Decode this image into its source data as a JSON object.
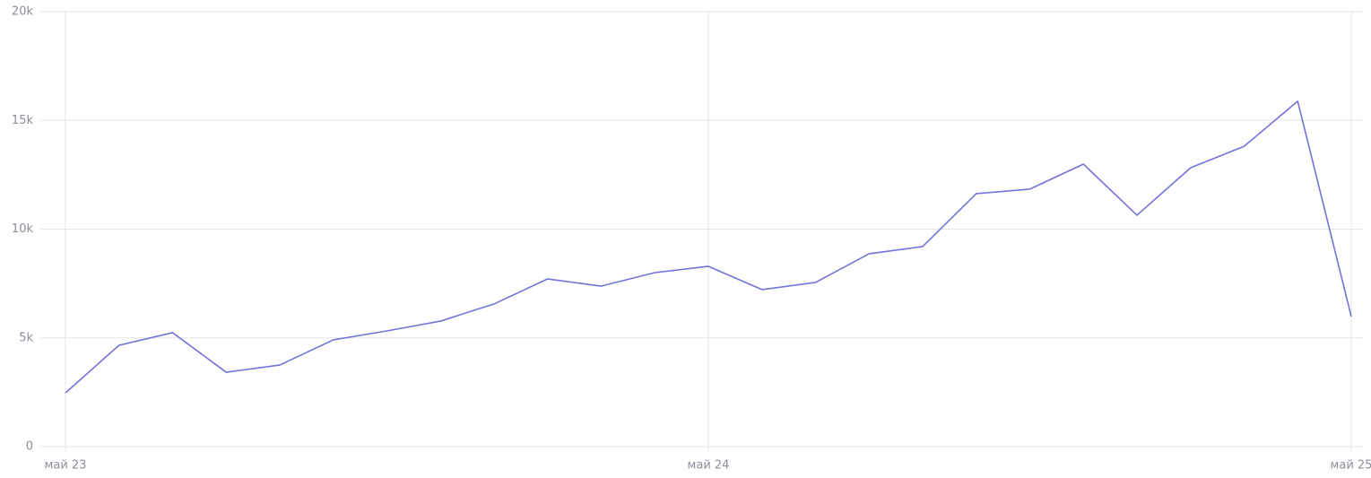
{
  "chart_data": {
    "type": "line",
    "categories": [
      "май 23",
      null,
      null,
      null,
      null,
      null,
      null,
      null,
      null,
      null,
      null,
      null,
      "май 24",
      null,
      null,
      null,
      null,
      null,
      null,
      null,
      null,
      null,
      null,
      null,
      "май 25"
    ],
    "series": [
      {
        "color": "#7373d9",
        "values": [
          2470,
          4660,
          5240,
          3420,
          3750,
          4910,
          5320,
          5770,
          6560,
          7710,
          7380,
          8000,
          8290,
          7220,
          7550,
          8870,
          9200,
          11630,
          11840,
          12990,
          10640,
          12820,
          13810,
          15880,
          5980
        ]
      }
    ],
    "ylim": [
      0,
      20000
    ],
    "yticks": [
      0,
      {
        "value": 5000,
        "label": "5k"
      },
      {
        "value": 10000,
        "label": "10k"
      },
      {
        "value": 15000,
        "label": "15k"
      },
      {
        "value": 20000,
        "label": "20k"
      }
    ],
    "grid": true
  }
}
